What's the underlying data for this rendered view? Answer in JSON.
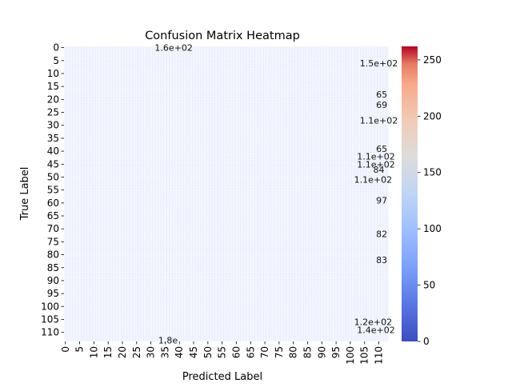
{
  "chart_data": {
    "type": "heatmap",
    "title": "Confusion Matrix Heatmap",
    "xlabel": "Predicted Label",
    "ylabel": "True Label",
    "n_classes": 114,
    "x_ticks": [
      "0",
      "5",
      "10",
      "15",
      "20",
      "25",
      "30",
      "35",
      "40",
      "45",
      "50",
      "55",
      "60",
      "65",
      "70",
      "75",
      "80",
      "85",
      "90",
      "95",
      "100",
      "105",
      "110"
    ],
    "y_ticks": [
      "0",
      "5",
      "10",
      "15",
      "20",
      "25",
      "30",
      "35",
      "40",
      "45",
      "50",
      "55",
      "60",
      "65",
      "70",
      "75",
      "80",
      "85",
      "90",
      "95",
      "100",
      "105",
      "110"
    ],
    "colorbar": {
      "colormap": "coolwarm",
      "range": [
        0,
        262
      ],
      "ticks": [
        "0",
        "50",
        "100",
        "150",
        "200",
        "250"
      ],
      "low_color": "#3b4cc0",
      "mid_color": "#dddddd",
      "high_color": "#b40426"
    },
    "background_value": 100,
    "visible_annotations": [
      {
        "row": 0,
        "col": 38,
        "text": "1.6e+02"
      },
      {
        "row": 6,
        "col": 110,
        "text": "1.5e+02"
      },
      {
        "row": 18,
        "col": 111,
        "text": "65"
      },
      {
        "row": 22,
        "col": 111,
        "text": "69"
      },
      {
        "row": 28,
        "col": 110,
        "text": "1.1e+02"
      },
      {
        "row": 39,
        "col": 111,
        "text": "65"
      },
      {
        "row": 42,
        "col": 109,
        "text": "1.1e+02"
      },
      {
        "row": 45,
        "col": 109,
        "text": "1.1e+02"
      },
      {
        "row": 47,
        "col": 110,
        "text": "84"
      },
      {
        "row": 51,
        "col": 108,
        "text": "1.1e+02"
      },
      {
        "row": 59,
        "col": 111,
        "text": "97"
      },
      {
        "row": 72,
        "col": 111,
        "text": "82"
      },
      {
        "row": 82,
        "col": 111,
        "text": "83"
      },
      {
        "row": 106,
        "col": 108,
        "text": "1.2e+02"
      },
      {
        "row": 109,
        "col": 109,
        "text": "1.4e+02"
      },
      {
        "row": 113,
        "col": 36,
        "text": "1.8e"
      }
    ]
  }
}
